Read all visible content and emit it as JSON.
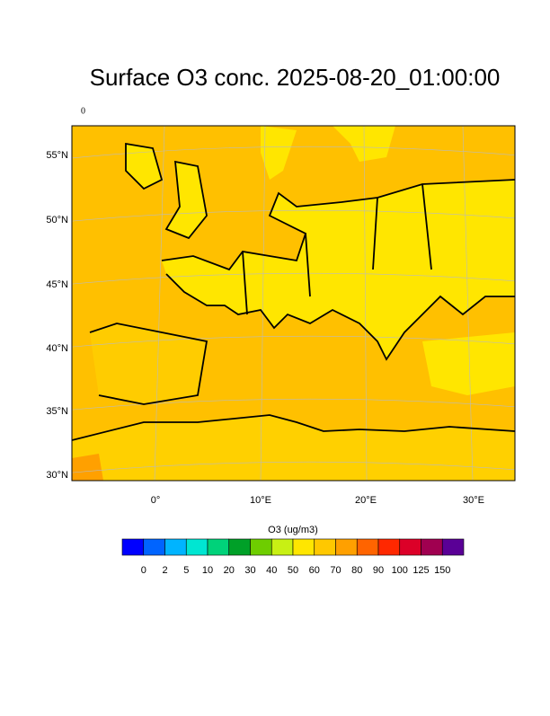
{
  "title": "Surface O3 conc. 2025-08-20_01:00:00",
  "subtitle": "0",
  "map": {
    "lat_labels": [
      "55°N",
      "50°N",
      "45°N",
      "40°N",
      "35°N",
      "30°N"
    ],
    "lon_labels": [
      "0°",
      "10°E",
      "20°E",
      "30°E"
    ]
  },
  "colorbar": {
    "label": "O3 (ug/m3)",
    "ticks": [
      "0",
      "2",
      "5",
      "10",
      "20",
      "30",
      "40",
      "50",
      "60",
      "70",
      "80",
      "90",
      "100",
      "125",
      "150"
    ],
    "colors": [
      "#0000ff",
      "#0064ff",
      "#00b4ff",
      "#00e6d2",
      "#00d27a",
      "#00a028",
      "#6ecd00",
      "#c8f014",
      "#ffe600",
      "#ffc800",
      "#ffa000",
      "#ff6400",
      "#ff2800",
      "#dc0028",
      "#a00050",
      "#5a0096"
    ]
  }
}
